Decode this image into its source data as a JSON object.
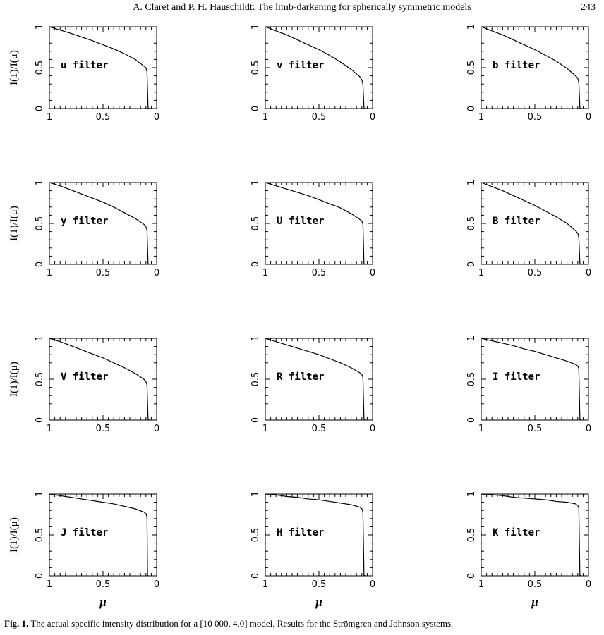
{
  "header": {
    "running_title": "A. Claret and P. H. Hauschildt: The limb-darkening for spherically symmetric models",
    "page_number": "243"
  },
  "figure": {
    "ylabel": "I(1)/I(μ)",
    "xlabel": "μ",
    "x_tick_labels": [
      "1",
      "0.5",
      "0"
    ],
    "y_tick_labels": [
      "0",
      "0.5",
      "1"
    ]
  },
  "caption": {
    "label": "Fig. 1.",
    "text": "The actual specific intensity distribution for a [10 000, 4.0] model. Results for the Strömgren and Johnson systems."
  },
  "chart_data": [
    {
      "type": "line",
      "label": "u filter",
      "x_reversed": true,
      "xlim": [
        1,
        0
      ],
      "ylim": [
        0,
        1
      ],
      "xlabel": "",
      "ylabel": "I(1)/I(μ)",
      "series": [
        {
          "x": [
            1,
            0.9,
            0.8,
            0.7,
            0.6,
            0.5,
            0.4,
            0.3,
            0.2,
            0.12,
            0.1,
            0.09,
            0.08,
            0.07
          ],
          "y": [
            1,
            0.96,
            0.92,
            0.875,
            0.83,
            0.78,
            0.73,
            0.67,
            0.6,
            0.52,
            0.5,
            0.45,
            0.01,
            0
          ]
        }
      ]
    },
    {
      "type": "line",
      "label": "v filter",
      "x_reversed": true,
      "xlim": [
        1,
        0
      ],
      "ylim": [
        0,
        1
      ],
      "xlabel": "",
      "ylabel": "",
      "series": [
        {
          "x": [
            1,
            0.9,
            0.8,
            0.7,
            0.6,
            0.5,
            0.4,
            0.3,
            0.2,
            0.12,
            0.1,
            0.09,
            0.08,
            0.07
          ],
          "y": [
            1,
            0.95,
            0.9,
            0.84,
            0.78,
            0.72,
            0.65,
            0.57,
            0.48,
            0.39,
            0.35,
            0.3,
            0.01,
            0
          ]
        }
      ]
    },
    {
      "type": "line",
      "label": "b filter",
      "x_reversed": true,
      "xlim": [
        1,
        0
      ],
      "ylim": [
        0,
        1
      ],
      "xlabel": "",
      "ylabel": "",
      "series": [
        {
          "x": [
            1,
            0.9,
            0.8,
            0.7,
            0.6,
            0.5,
            0.4,
            0.3,
            0.2,
            0.12,
            0.1,
            0.09,
            0.08,
            0.07
          ],
          "y": [
            1,
            0.95,
            0.9,
            0.84,
            0.78,
            0.72,
            0.65,
            0.58,
            0.49,
            0.4,
            0.37,
            0.32,
            0.01,
            0
          ]
        }
      ]
    },
    {
      "type": "line",
      "label": "y filter",
      "x_reversed": true,
      "xlim": [
        1,
        0
      ],
      "ylim": [
        0,
        1
      ],
      "xlabel": "",
      "ylabel": "I(1)/I(μ)",
      "series": [
        {
          "x": [
            1,
            0.9,
            0.8,
            0.7,
            0.6,
            0.5,
            0.4,
            0.3,
            0.2,
            0.12,
            0.1,
            0.09,
            0.08,
            0.07
          ],
          "y": [
            1,
            0.96,
            0.91,
            0.86,
            0.81,
            0.76,
            0.7,
            0.63,
            0.56,
            0.49,
            0.46,
            0.42,
            0.01,
            0
          ]
        }
      ]
    },
    {
      "type": "line",
      "label": "U filter",
      "x_reversed": true,
      "xlim": [
        1,
        0
      ],
      "ylim": [
        0,
        1
      ],
      "xlabel": "",
      "ylabel": "",
      "series": [
        {
          "x": [
            1,
            0.9,
            0.8,
            0.7,
            0.6,
            0.5,
            0.4,
            0.3,
            0.2,
            0.12,
            0.1,
            0.09,
            0.08,
            0.07
          ],
          "y": [
            1,
            0.96,
            0.92,
            0.88,
            0.84,
            0.79,
            0.74,
            0.69,
            0.62,
            0.55,
            0.53,
            0.49,
            0.01,
            0
          ]
        }
      ]
    },
    {
      "type": "line",
      "label": "B filter",
      "x_reversed": true,
      "xlim": [
        1,
        0
      ],
      "ylim": [
        0,
        1
      ],
      "xlabel": "",
      "ylabel": "",
      "series": [
        {
          "x": [
            1,
            0.9,
            0.8,
            0.7,
            0.6,
            0.5,
            0.4,
            0.3,
            0.2,
            0.12,
            0.1,
            0.09,
            0.08,
            0.07
          ],
          "y": [
            1,
            0.95,
            0.9,
            0.84,
            0.78,
            0.72,
            0.65,
            0.58,
            0.5,
            0.41,
            0.38,
            0.33,
            0.01,
            0
          ]
        }
      ]
    },
    {
      "type": "line",
      "label": "V filter",
      "x_reversed": true,
      "xlim": [
        1,
        0
      ],
      "ylim": [
        0,
        1
      ],
      "xlabel": "",
      "ylabel": "I(1)/I(μ)",
      "series": [
        {
          "x": [
            1,
            0.9,
            0.8,
            0.7,
            0.6,
            0.5,
            0.4,
            0.3,
            0.2,
            0.12,
            0.1,
            0.09,
            0.08,
            0.07
          ],
          "y": [
            1,
            0.96,
            0.91,
            0.86,
            0.81,
            0.76,
            0.7,
            0.64,
            0.57,
            0.5,
            0.47,
            0.43,
            0.01,
            0
          ]
        }
      ]
    },
    {
      "type": "line",
      "label": "R filter",
      "x_reversed": true,
      "xlim": [
        1,
        0
      ],
      "ylim": [
        0,
        1
      ],
      "xlabel": "",
      "ylabel": "",
      "series": [
        {
          "x": [
            1,
            0.9,
            0.8,
            0.7,
            0.6,
            0.5,
            0.4,
            0.3,
            0.2,
            0.12,
            0.1,
            0.09,
            0.08,
            0.07
          ],
          "y": [
            1,
            0.96,
            0.92,
            0.88,
            0.84,
            0.8,
            0.75,
            0.7,
            0.64,
            0.58,
            0.56,
            0.52,
            0.01,
            0
          ]
        }
      ]
    },
    {
      "type": "line",
      "label": "I filter",
      "x_reversed": true,
      "xlim": [
        1,
        0
      ],
      "ylim": [
        0,
        1
      ],
      "xlabel": "",
      "ylabel": "",
      "series": [
        {
          "x": [
            1,
            0.9,
            0.8,
            0.7,
            0.6,
            0.5,
            0.4,
            0.3,
            0.2,
            0.12,
            0.1,
            0.09,
            0.08,
            0.07
          ],
          "y": [
            1,
            0.97,
            0.94,
            0.91,
            0.87,
            0.84,
            0.8,
            0.76,
            0.72,
            0.68,
            0.66,
            0.63,
            0.01,
            0
          ]
        }
      ]
    },
    {
      "type": "line",
      "label": "J filter",
      "x_reversed": true,
      "xlim": [
        1,
        0
      ],
      "ylim": [
        0,
        1
      ],
      "xlabel": "μ",
      "ylabel": "I(1)/I(μ)",
      "series": [
        {
          "x": [
            1,
            0.9,
            0.8,
            0.7,
            0.6,
            0.5,
            0.4,
            0.3,
            0.2,
            0.12,
            0.1,
            0.09,
            0.085,
            0.08
          ],
          "y": [
            1,
            0.98,
            0.96,
            0.94,
            0.92,
            0.9,
            0.88,
            0.85,
            0.82,
            0.78,
            0.76,
            0.72,
            0.01,
            0
          ]
        }
      ]
    },
    {
      "type": "line",
      "label": "H filter",
      "x_reversed": true,
      "xlim": [
        1,
        0
      ],
      "ylim": [
        0,
        1
      ],
      "xlabel": "μ",
      "ylabel": "",
      "series": [
        {
          "x": [
            1,
            0.9,
            0.8,
            0.7,
            0.6,
            0.5,
            0.4,
            0.3,
            0.2,
            0.12,
            0.1,
            0.09,
            0.08,
            0.07
          ],
          "y": [
            1,
            0.99,
            0.97,
            0.96,
            0.94,
            0.93,
            0.91,
            0.89,
            0.87,
            0.84,
            0.82,
            0.78,
            0.01,
            0
          ]
        }
      ]
    },
    {
      "type": "line",
      "label": "K filter",
      "x_reversed": true,
      "xlim": [
        1,
        0
      ],
      "ylim": [
        0,
        1
      ],
      "xlabel": "μ",
      "ylabel": "",
      "series": [
        {
          "x": [
            1,
            0.9,
            0.8,
            0.7,
            0.6,
            0.5,
            0.4,
            0.3,
            0.2,
            0.12,
            0.1,
            0.09,
            0.08,
            0.07
          ],
          "y": [
            1,
            0.99,
            0.98,
            0.96,
            0.95,
            0.94,
            0.93,
            0.91,
            0.9,
            0.88,
            0.86,
            0.83,
            0.01,
            0
          ]
        }
      ]
    }
  ]
}
